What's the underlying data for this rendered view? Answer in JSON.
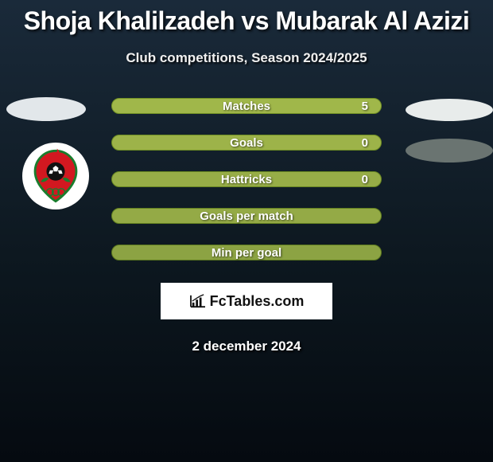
{
  "title": "Shoja Khalilzadeh vs Mubarak Al Azizi",
  "subtitle": "Club competitions, Season 2024/2025",
  "footer_date": "2 december 2024",
  "brand": {
    "label": "FcTables.com"
  },
  "ellipses": {
    "tl_color": "#e2e7ea",
    "tr_color": "#e8eceb",
    "br_color": "#6a7471"
  },
  "crest": {
    "ring_color": "#1a7d2d",
    "red": "#d21820",
    "black": "#111111",
    "white": "#ffffff"
  },
  "stats": [
    {
      "label": "Matches",
      "value": "5",
      "bg": "#a0b74a",
      "border": "#739225"
    },
    {
      "label": "Goals",
      "value": "0",
      "bg": "#9db349",
      "border": "#6d8c22"
    },
    {
      "label": "Hattricks",
      "value": "0",
      "bg": "#97ad47",
      "border": "#678520"
    },
    {
      "label": "Goals per match",
      "value": "",
      "bg": "#94aa46",
      "border": "#62801f"
    },
    {
      "label": "Min per goal",
      "value": "",
      "bg": "#8ca343",
      "border": "#5b781d"
    }
  ]
}
